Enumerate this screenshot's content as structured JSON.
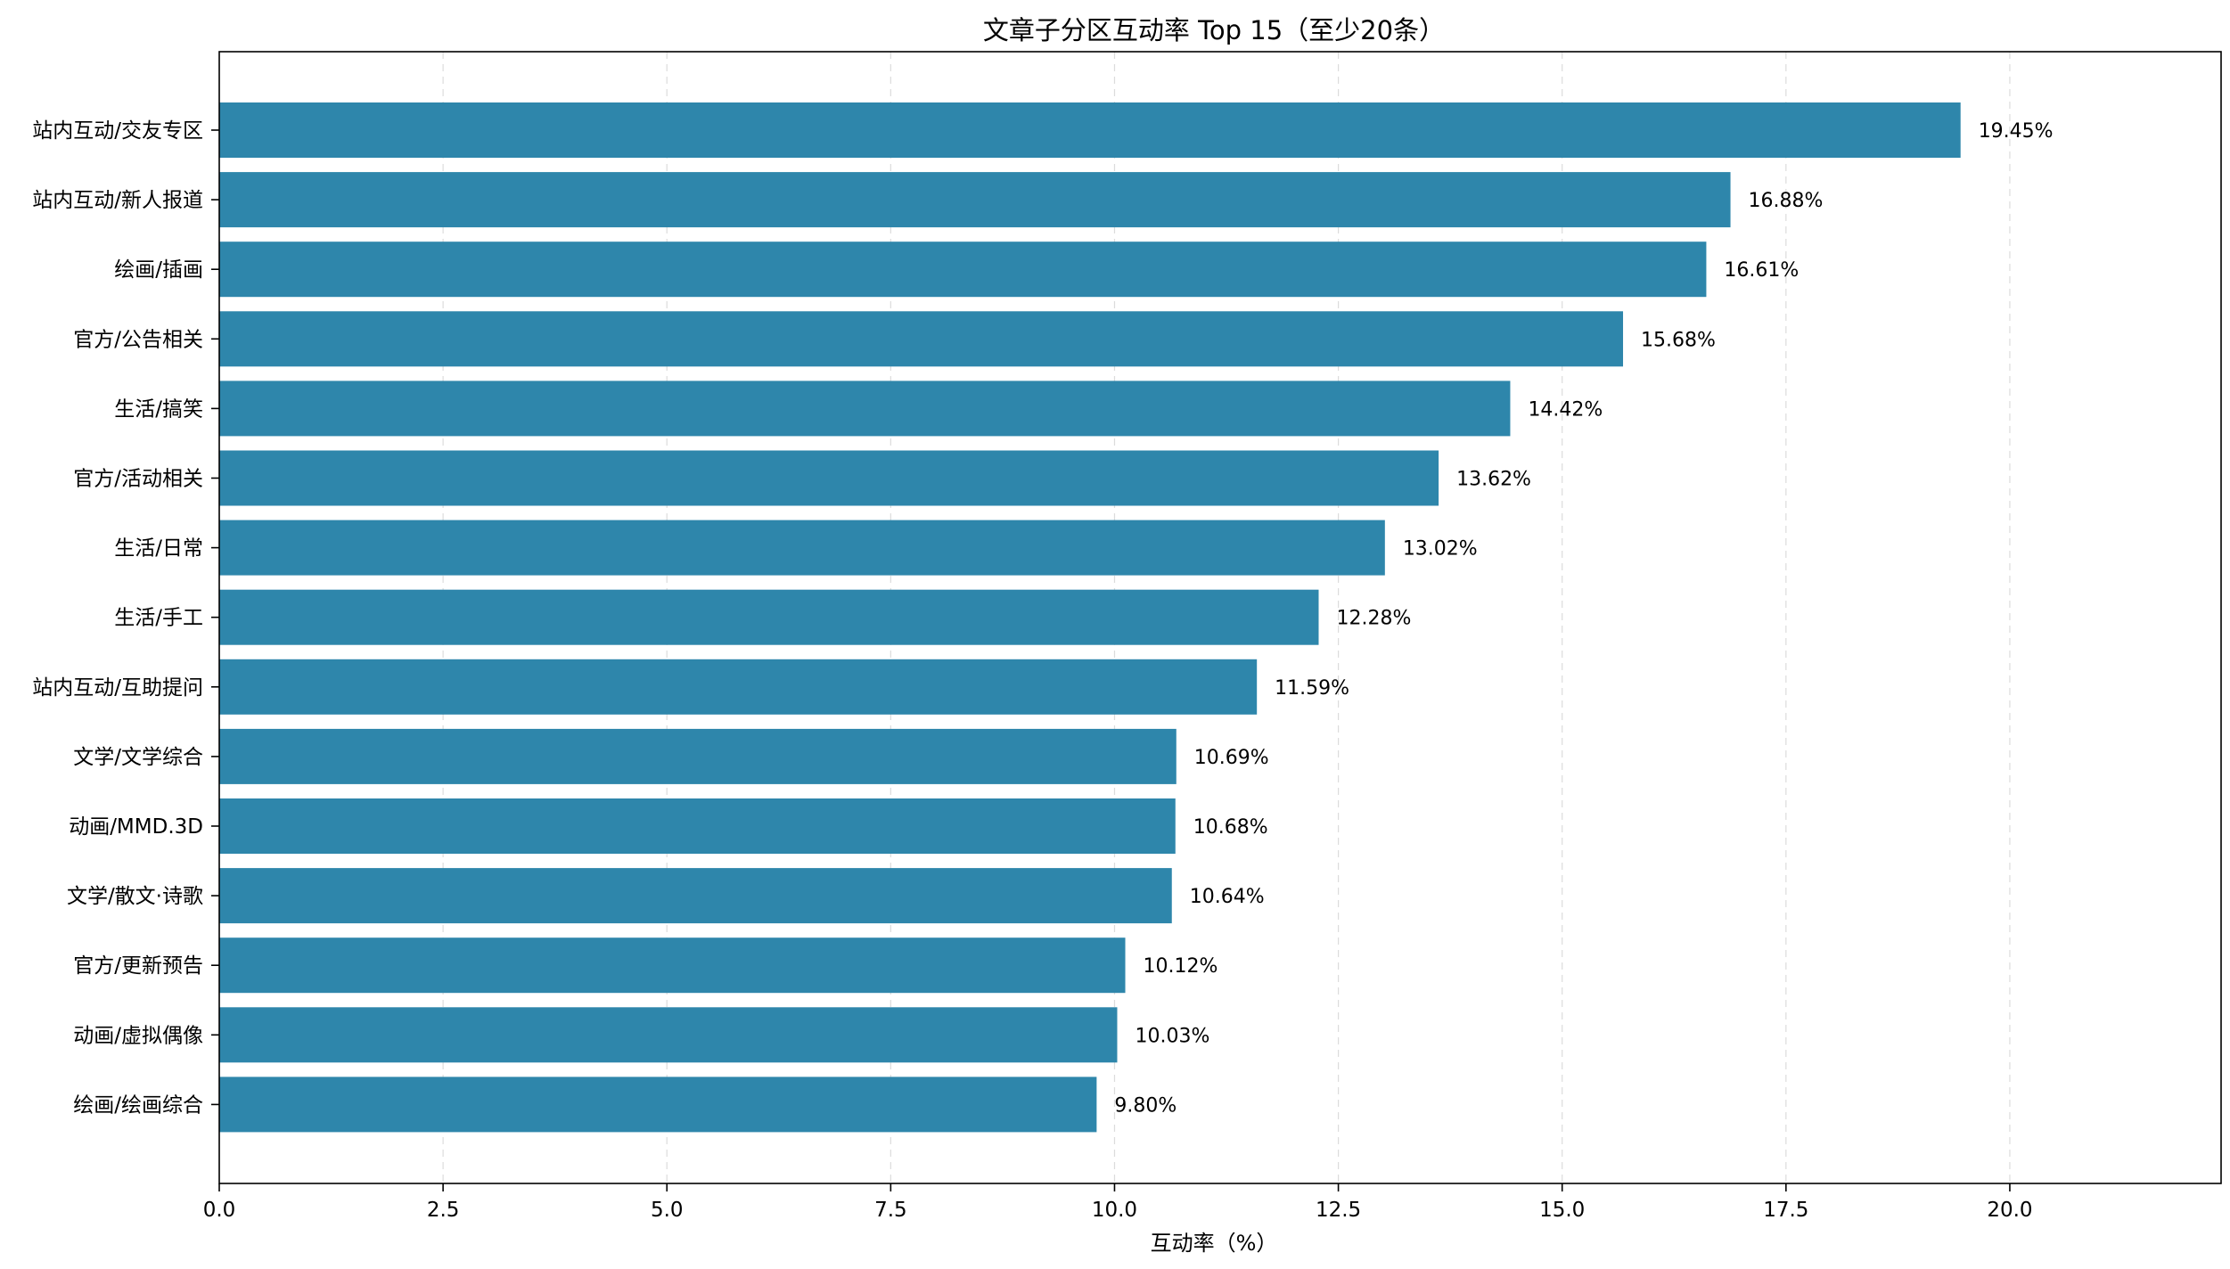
{
  "chart_data": {
    "type": "bar",
    "orientation": "horizontal",
    "title": "文章子分区互动率 Top 15（至少20条）",
    "xlabel": "互动率（%）",
    "ylabel": "",
    "xlim": [
      0,
      22.36
    ],
    "xticks": [
      "0.0",
      "2.5",
      "5.0",
      "7.5",
      "10.0",
      "12.5",
      "15.0",
      "17.5",
      "20.0"
    ],
    "grid": "vertical dashed",
    "bar_color": "#2e86ab",
    "categories": [
      "站内互动/交友专区",
      "站内互动/新人报道",
      "绘画/插画",
      "官方/公告相关",
      "生活/搞笑",
      "官方/活动相关",
      "生活/日常",
      "生活/手工",
      "站内互动/互助提问",
      "文学/文学综合",
      "动画/MMD.3D",
      "文学/散文·诗歌",
      "官方/更新预告",
      "动画/虚拟偶像",
      "绘画/绘画综合"
    ],
    "values": [
      19.45,
      16.88,
      16.61,
      15.68,
      14.42,
      13.62,
      13.02,
      12.28,
      11.59,
      10.69,
      10.68,
      10.64,
      10.12,
      10.03,
      9.8
    ],
    "value_labels": [
      "19.45%",
      "16.88%",
      "16.61%",
      "15.68%",
      "14.42%",
      "13.62%",
      "13.02%",
      "12.28%",
      "11.59%",
      "10.69%",
      "10.68%",
      "10.64%",
      "10.12%",
      "10.03%",
      "9.80%"
    ]
  }
}
